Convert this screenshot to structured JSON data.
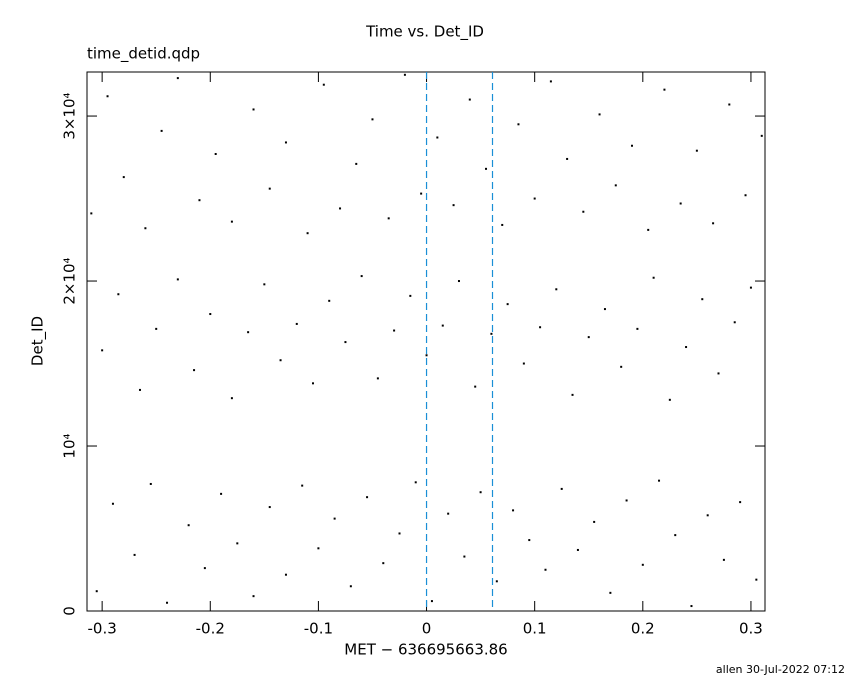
{
  "chart_data": {
    "type": "scatter",
    "title": "Time vs. Det_ID",
    "subtitle": "time_detid.qdp",
    "x_label": "MET − 636695663.86",
    "y_label": "Det_ID",
    "footer": "allen 30-Jul-2022 07:12",
    "xlim": [
      -0.314,
      0.313
    ],
    "ylim": [
      0,
      32670
    ],
    "xticks": [
      -0.3,
      -0.2,
      -0.1,
      0,
      0.1,
      0.2,
      0.3
    ],
    "yticks": [
      0,
      {
        "value": 10000,
        "label": "10⁴"
      },
      {
        "value": 20000,
        "label": "2×10⁴"
      },
      {
        "value": 30000,
        "label": "3×10⁴"
      }
    ],
    "vlines": [
      0,
      0.061
    ],
    "vline_color": "#1a8fd6",
    "series": [
      {
        "color": "#000000",
        "x": [
          -0.305,
          -0.29,
          -0.27,
          -0.255,
          -0.24,
          -0.22,
          -0.205,
          -0.19,
          -0.175,
          -0.16,
          -0.145,
          -0.13,
          -0.115,
          -0.1,
          -0.085,
          -0.07,
          -0.055,
          -0.04,
          -0.025,
          -0.01,
          0.005,
          0.02,
          0.035,
          0.05,
          0.065,
          0.08,
          0.095,
          0.11,
          0.125,
          0.14,
          0.155,
          0.17,
          0.185,
          0.2,
          0.215,
          0.23,
          0.245,
          0.26,
          0.275,
          0.29,
          0.305,
          -0.3,
          -0.285,
          -0.265,
          -0.25,
          -0.23,
          -0.215,
          -0.2,
          -0.18,
          -0.165,
          -0.15,
          -0.135,
          -0.12,
          -0.105,
          -0.09,
          -0.075,
          -0.06,
          -0.045,
          -0.03,
          -0.015,
          0,
          0.015,
          0.03,
          0.045,
          0.06,
          0.075,
          0.09,
          0.105,
          0.12,
          0.135,
          0.15,
          0.165,
          0.18,
          0.195,
          0.21,
          0.225,
          0.24,
          0.255,
          0.27,
          0.285,
          0.3,
          -0.31,
          -0.295,
          -0.28,
          -0.26,
          -0.245,
          -0.23,
          -0.21,
          -0.195,
          -0.18,
          -0.16,
          -0.145,
          -0.13,
          -0.11,
          -0.095,
          -0.08,
          -0.065,
          -0.05,
          -0.035,
          -0.02,
          -0.005,
          0.01,
          0.025,
          0.04,
          0.055,
          0.07,
          0.085,
          0.1,
          0.115,
          0.13,
          0.145,
          0.16,
          0.175,
          0.19,
          0.205,
          0.22,
          0.235,
          0.25,
          0.265,
          0.28,
          0.295,
          0.31
        ],
        "y": [
          1200,
          6500,
          3400,
          7700,
          500,
          5200,
          2600,
          7100,
          4100,
          900,
          6300,
          2200,
          7600,
          3800,
          5600,
          1500,
          6900,
          2900,
          4700,
          7800,
          600,
          5900,
          3300,
          7200,
          1800,
          6100,
          4300,
          2500,
          7400,
          3700,
          5400,
          1100,
          6700,
          2800,
          7900,
          4600,
          300,
          5800,
          3100,
          6600,
          1900,
          15800,
          19200,
          13400,
          17100,
          20100,
          14600,
          18000,
          12900,
          16900,
          19800,
          15200,
          17400,
          13800,
          18800,
          16300,
          20300,
          14100,
          17000,
          19100,
          15500,
          17300,
          20000,
          13600,
          16800,
          18600,
          15000,
          17200,
          19500,
          13100,
          16600,
          18300,
          14800,
          17100,
          20200,
          12800,
          16000,
          18900,
          14400,
          17500,
          19600,
          24100,
          31200,
          26300,
          23200,
          29100,
          32300,
          24900,
          27700,
          23600,
          30400,
          25600,
          28400,
          22900,
          31900,
          24400,
          27100,
          29800,
          23800,
          32500,
          25300,
          28700,
          24600,
          31000,
          26800,
          23400,
          29500,
          25000,
          32100,
          27400,
          24200,
          30100,
          25800,
          28200,
          23100,
          31600,
          24700,
          27900,
          23500,
          30700,
          25200,
          28800
        ]
      }
    ]
  }
}
